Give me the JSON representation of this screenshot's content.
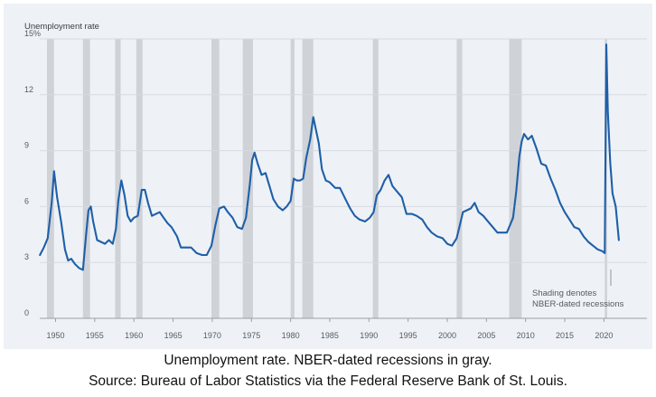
{
  "caption": {
    "line1": "Unemployment rate. NBER-dated recessions in gray.",
    "line2": "Source: Bureau of Labor Statistics via the Federal Reserve Bank of St. Louis."
  },
  "chart_data": {
    "type": "line",
    "ylabel": "Unemployment rate",
    "ylim": [
      0,
      15
    ],
    "xlim": [
      1948,
      2023
    ],
    "y_ticks": [
      "0",
      "3",
      "6",
      "9",
      "12",
      "15%"
    ],
    "y_tick_values": [
      0,
      3,
      6,
      9,
      12,
      15
    ],
    "x_ticks": [
      "1950",
      "1955",
      "1960",
      "1965",
      "1970",
      "1975",
      "1980",
      "1985",
      "1990",
      "1995",
      "2000",
      "2005",
      "2010",
      "2015",
      "2020"
    ],
    "x_tick_values": [
      1950,
      1955,
      1960,
      1965,
      1970,
      1975,
      1980,
      1985,
      1990,
      1995,
      2000,
      2005,
      2010,
      2015,
      2020
    ],
    "recession_note": [
      "Shading denotes",
      "NBER-dated recessions"
    ],
    "recessions": [
      [
        1948.9,
        1949.8
      ],
      [
        1953.5,
        1954.4
      ],
      [
        1957.6,
        1958.3
      ],
      [
        1960.3,
        1961.1
      ],
      [
        1969.9,
        1970.9
      ],
      [
        1973.9,
        1975.2
      ],
      [
        1980.0,
        1980.5
      ],
      [
        1981.5,
        1982.9
      ],
      [
        1990.5,
        1991.2
      ],
      [
        2001.2,
        2001.9
      ],
      [
        2007.9,
        2009.5
      ],
      [
        2020.1,
        2020.4
      ]
    ],
    "series": [
      {
        "name": "Unemployment rate",
        "color": "#1f5fa8",
        "x": [
          1948.0,
          1948.5,
          1949.0,
          1949.5,
          1949.8,
          1950.2,
          1950.7,
          1951.2,
          1951.6,
          1952.0,
          1952.5,
          1953.0,
          1953.5,
          1953.9,
          1954.2,
          1954.5,
          1954.8,
          1955.3,
          1955.8,
          1956.3,
          1956.8,
          1957.3,
          1957.7,
          1958.0,
          1958.4,
          1958.8,
          1959.2,
          1959.6,
          1960.0,
          1960.5,
          1961.0,
          1961.4,
          1961.8,
          1962.3,
          1962.8,
          1963.3,
          1963.8,
          1964.3,
          1964.8,
          1965.5,
          1966.0,
          1966.6,
          1967.3,
          1968.0,
          1968.7,
          1969.3,
          1969.9,
          1970.4,
          1970.9,
          1971.5,
          1972.0,
          1972.6,
          1973.2,
          1973.8,
          1974.3,
          1974.8,
          1975.1,
          1975.4,
          1975.8,
          1976.3,
          1976.8,
          1977.3,
          1977.8,
          1978.4,
          1979.0,
          1979.5,
          1980.0,
          1980.4,
          1980.8,
          1981.2,
          1981.6,
          1982.0,
          1982.5,
          1982.9,
          1983.2,
          1983.6,
          1984.0,
          1984.5,
          1985.0,
          1985.7,
          1986.3,
          1987.0,
          1987.6,
          1988.2,
          1988.8,
          1989.5,
          1990.1,
          1990.6,
          1991.0,
          1991.5,
          1992.0,
          1992.5,
          1993.0,
          1993.6,
          1994.2,
          1994.8,
          1995.5,
          1996.1,
          1996.8,
          1997.4,
          1998.0,
          1998.7,
          1999.4,
          2000.0,
          2000.6,
          2001.2,
          2001.6,
          2002.0,
          2002.5,
          2003.0,
          2003.5,
          2004.0,
          2004.6,
          2005.2,
          2005.8,
          2006.4,
          2007.0,
          2007.6,
          2008.0,
          2008.4,
          2008.8,
          2009.2,
          2009.5,
          2009.8,
          2010.3,
          2010.8,
          2011.4,
          2012.0,
          2012.6,
          2013.2,
          2013.8,
          2014.4,
          2015.0,
          2015.6,
          2016.2,
          2016.8,
          2017.4,
          2018.0,
          2018.6,
          2019.2,
          2019.8,
          2020.1,
          2020.3,
          2020.5,
          2020.8,
          2021.1,
          2021.5,
          2021.9
        ],
        "values": [
          3.4,
          3.8,
          4.3,
          6.2,
          7.9,
          6.5,
          5.2,
          3.7,
          3.1,
          3.2,
          2.9,
          2.7,
          2.6,
          4.5,
          5.8,
          6.0,
          5.2,
          4.2,
          4.1,
          4.0,
          4.2,
          4.0,
          4.8,
          6.3,
          7.4,
          6.6,
          5.5,
          5.2,
          5.4,
          5.5,
          6.9,
          6.9,
          6.2,
          5.5,
          5.6,
          5.7,
          5.4,
          5.1,
          4.9,
          4.4,
          3.8,
          3.8,
          3.8,
          3.5,
          3.4,
          3.4,
          3.9,
          5.0,
          5.9,
          6.0,
          5.7,
          5.4,
          4.9,
          4.8,
          5.4,
          7.2,
          8.5,
          8.9,
          8.3,
          7.7,
          7.8,
          7.1,
          6.4,
          6.0,
          5.8,
          6.0,
          6.3,
          7.5,
          7.4,
          7.4,
          7.5,
          8.6,
          9.6,
          10.8,
          10.2,
          9.4,
          8.0,
          7.4,
          7.3,
          7.0,
          7.0,
          6.4,
          5.9,
          5.5,
          5.3,
          5.2,
          5.4,
          5.7,
          6.6,
          6.9,
          7.4,
          7.7,
          7.1,
          6.8,
          6.5,
          5.6,
          5.6,
          5.5,
          5.3,
          4.9,
          4.6,
          4.4,
          4.3,
          4.0,
          3.9,
          4.3,
          5.0,
          5.7,
          5.8,
          5.9,
          6.2,
          5.7,
          5.5,
          5.2,
          4.9,
          4.6,
          4.6,
          4.6,
          5.0,
          5.4,
          6.8,
          8.7,
          9.5,
          9.9,
          9.6,
          9.8,
          9.1,
          8.3,
          8.2,
          7.5,
          6.9,
          6.2,
          5.7,
          5.3,
          4.9,
          4.8,
          4.4,
          4.1,
          3.9,
          3.7,
          3.6,
          3.5,
          14.7,
          11.1,
          8.4,
          6.7,
          6.0,
          4.2
        ]
      }
    ]
  }
}
